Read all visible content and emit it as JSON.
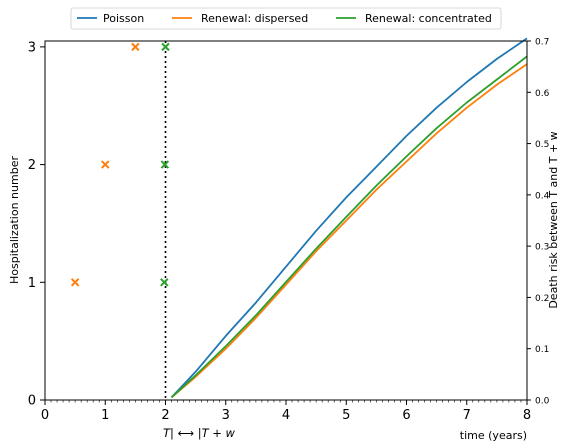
{
  "chart_data": {
    "type": "line",
    "x_ticks": [
      "0",
      "1",
      "2",
      "3",
      "4",
      "5",
      "6",
      "7",
      "8"
    ],
    "xlim": [
      0,
      8
    ],
    "xlabel": "time (years)",
    "marker_label": "T| ⟷ |T + w",
    "marker_x": 2,
    "left_axis": {
      "ylabel": "Hospitalization number",
      "ylim": [
        0,
        3.05
      ],
      "ticks": [
        "0",
        "1",
        "2",
        "3"
      ]
    },
    "right_axis": {
      "ylabel": "Death risk between T and T + w",
      "ylim": [
        0,
        0.7
      ],
      "ticks": [
        "0.0",
        "0.1",
        "0.2",
        "0.3",
        "0.4",
        "0.5",
        "0.6",
        "0.7"
      ]
    },
    "legend": {
      "placement": "top-center, above plot",
      "entries": [
        "Poisson",
        "Renewal: dispersed",
        "Renewal: concentrated"
      ]
    },
    "series": [
      {
        "name": "Poisson",
        "color": "#1f77b4",
        "axis": "right",
        "x": [
          2.1,
          2.5,
          3,
          3.5,
          4,
          4.5,
          5,
          5.5,
          6,
          6.5,
          7,
          7.5,
          8
        ],
        "y": [
          0.005,
          0.055,
          0.125,
          0.19,
          0.26,
          0.33,
          0.395,
          0.455,
          0.515,
          0.57,
          0.62,
          0.665,
          0.705
        ]
      },
      {
        "name": "Renewal: dispersed",
        "color": "#ff7f0e",
        "axis": "right",
        "x": [
          2.1,
          2.5,
          3,
          3.5,
          4,
          4.5,
          5,
          5.5,
          6,
          6.5,
          7,
          7.5,
          8
        ],
        "y": [
          0.005,
          0.045,
          0.1,
          0.16,
          0.225,
          0.29,
          0.35,
          0.41,
          0.465,
          0.52,
          0.57,
          0.615,
          0.655
        ]
      },
      {
        "name": "Renewal: concentrated",
        "color": "#2ca02c",
        "axis": "right",
        "x": [
          2.1,
          2.5,
          3,
          3.5,
          4,
          4.5,
          5,
          5.5,
          6,
          6.5,
          7,
          7.5,
          8
        ],
        "y": [
          0.005,
          0.048,
          0.105,
          0.165,
          0.23,
          0.295,
          0.357,
          0.418,
          0.475,
          0.53,
          0.58,
          0.625,
          0.67
        ]
      }
    ],
    "events": [
      {
        "series": "Renewal: dispersed",
        "color": "#ff7f0e",
        "x": [
          0.5,
          1.0,
          1.5
        ],
        "y": [
          1,
          2,
          3
        ]
      },
      {
        "series": "Renewal: concentrated",
        "color": "#2ca02c",
        "x": [
          1.98,
          1.99,
          2.0
        ],
        "y": [
          1,
          2,
          3
        ]
      }
    ]
  }
}
